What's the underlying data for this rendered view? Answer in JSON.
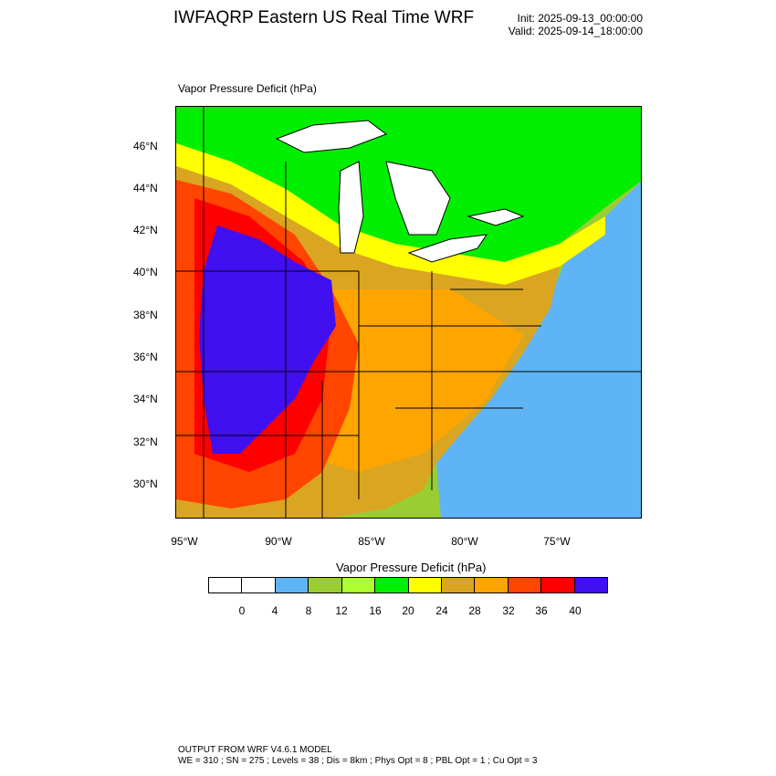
{
  "header": {
    "title": "IWFAQRP Eastern US Real Time WRF",
    "init": "Init: 2025-09-13_00:00:00",
    "valid": "Valid: 2025-09-14_18:00:00"
  },
  "map": {
    "field_label": "Vapor Pressure Deficit   (hPa)",
    "lat_ticks": [
      "46°N",
      "44°N",
      "42°N",
      "40°N",
      "38°N",
      "36°N",
      "34°N",
      "32°N",
      "30°N"
    ],
    "lon_ticks": [
      "95°W",
      "90°W",
      "85°W",
      "80°W",
      "75°W"
    ],
    "colors": {
      "water": "#5fb4f5",
      "ocean_bg": "#e8ecf0",
      "border": "#000000"
    }
  },
  "colorbar": {
    "title": "Vapor Pressure Deficit   (hPa)",
    "labels": [
      "0",
      "4",
      "8",
      "12",
      "16",
      "20",
      "24",
      "28",
      "32",
      "36",
      "40"
    ],
    "colors": [
      "#ffffff",
      "#ffffff",
      "#5fb4f5",
      "#9acd32",
      "#adff2f",
      "#00ee00",
      "#ffff00",
      "#daa520",
      "#ffa500",
      "#ff4500",
      "#ff0000",
      "#4010f0"
    ]
  },
  "footer": {
    "line1": "OUTPUT FROM WRF V4.6.1 MODEL",
    "line2": "WE = 310 ; SN = 275 ; Levels = 38 ; Dis = 8km ; Phys Opt = 8 ; PBL Opt = 1 ; Cu Opt = 3"
  }
}
